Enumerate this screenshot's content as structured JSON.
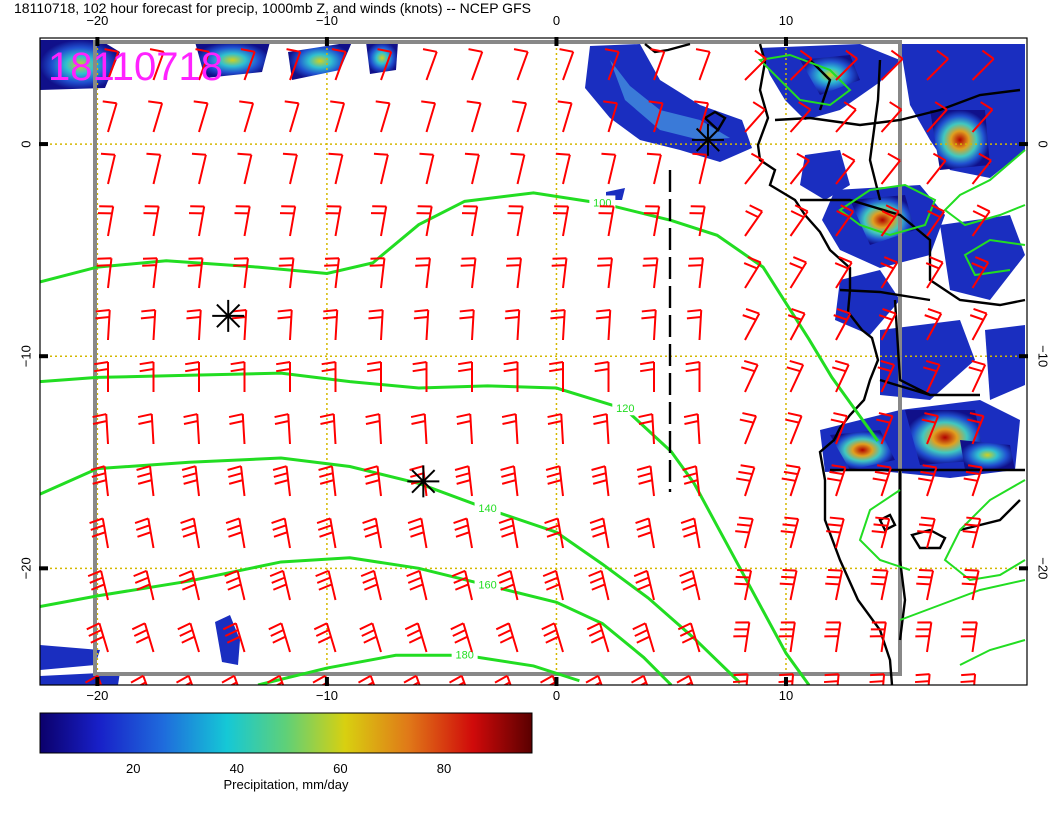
{
  "title": "18110718, 102 hour forecast for precip, 1000mb Z, and winds (knots) -- NCEP GFS",
  "stamp": "18110718",
  "map": {
    "lon_range": [
      -22.5,
      20.5
    ],
    "lat_range": [
      -25.5,
      5
    ],
    "lon_ticks": [
      -20,
      -10,
      0,
      10
    ],
    "lat_ticks": [
      0,
      -10,
      -20
    ],
    "top_lon_labels": [
      "−20",
      "−10",
      "0",
      "10"
    ],
    "bottom_lon_labels": [
      "−20",
      "−10",
      "0",
      "10"
    ],
    "left_lat_labels": [
      "0",
      "−10",
      "−20"
    ],
    "right_lat_labels": [
      "0",
      "−10",
      "−20"
    ],
    "gridline_color": "#d4b800",
    "wind_barb_color": "#ff0000",
    "contour_color": "#22dd22",
    "coast_color": "#000000"
  },
  "height_contours": [
    {
      "label": "100",
      "points": [
        [
          -22.5,
          -6.5
        ],
        [
          -20,
          -5.8
        ],
        [
          -17,
          -5.5
        ],
        [
          -13,
          -5.8
        ],
        [
          -10,
          -6.1
        ],
        [
          -8,
          -5.6
        ],
        [
          -6,
          -3.8
        ],
        [
          -4,
          -2.7
        ],
        [
          -1,
          -2.3
        ],
        [
          2,
          -2.8
        ],
        [
          5,
          -3.6
        ],
        [
          7,
          -4.3
        ],
        [
          9,
          -5.8
        ],
        [
          10,
          -7.5
        ],
        [
          11,
          -9.2
        ],
        [
          12,
          -11
        ],
        [
          13,
          -12.5
        ],
        [
          14,
          -14
        ]
      ]
    },
    {
      "label": "120",
      "points": [
        [
          -22.5,
          -11.2
        ],
        [
          -20,
          -11
        ],
        [
          -16,
          -10.9
        ],
        [
          -12,
          -10.8
        ],
        [
          -9,
          -11.2
        ],
        [
          -6,
          -11.5
        ],
        [
          -3,
          -11.4
        ],
        [
          0,
          -11.5
        ],
        [
          3,
          -12.5
        ],
        [
          5,
          -14.5
        ],
        [
          6,
          -16
        ],
        [
          7,
          -18
        ],
        [
          8,
          -20
        ],
        [
          9,
          -22
        ],
        [
          10,
          -24
        ],
        [
          11,
          -25.5
        ]
      ]
    },
    {
      "label": "140",
      "points": [
        [
          -22.5,
          -16.5
        ],
        [
          -20,
          -15.3
        ],
        [
          -16,
          -15
        ],
        [
          -12,
          -14.8
        ],
        [
          -9,
          -15.2
        ],
        [
          -6,
          -16
        ],
        [
          -3,
          -17.2
        ],
        [
          0,
          -18.3
        ],
        [
          2,
          -19.8
        ],
        [
          4,
          -21.4
        ],
        [
          6,
          -23.3
        ],
        [
          8,
          -25.4
        ]
      ]
    },
    {
      "label": "160",
      "points": [
        [
          -22.5,
          -21.8
        ],
        [
          -20,
          -21.3
        ],
        [
          -16,
          -20.6
        ],
        [
          -12,
          -19.7
        ],
        [
          -9,
          -19.5
        ],
        [
          -6,
          -20
        ],
        [
          -3,
          -20.8
        ],
        [
          0,
          -21.6
        ],
        [
          2,
          -22.6
        ],
        [
          3.8,
          -24.2
        ],
        [
          5,
          -25.5
        ]
      ]
    },
    {
      "label": "180",
      "points": [
        [
          -13,
          -25.5
        ],
        [
          -10,
          -24.7
        ],
        [
          -7,
          -24.1
        ],
        [
          -4,
          -24.1
        ],
        [
          -1,
          -24.6
        ],
        [
          1,
          -25.3
        ]
      ]
    }
  ],
  "colorbar": {
    "title": "Precipitation, mm/day",
    "ticks": [
      "20",
      "40",
      "60",
      "80"
    ],
    "min": 2,
    "max": 97
  },
  "storm_markers": [
    {
      "lon": -14.3,
      "lat": -8.1
    },
    {
      "lon": -5.8,
      "lat": -15.9
    },
    {
      "lon": 6.6,
      "lat": 0.2
    }
  ]
}
